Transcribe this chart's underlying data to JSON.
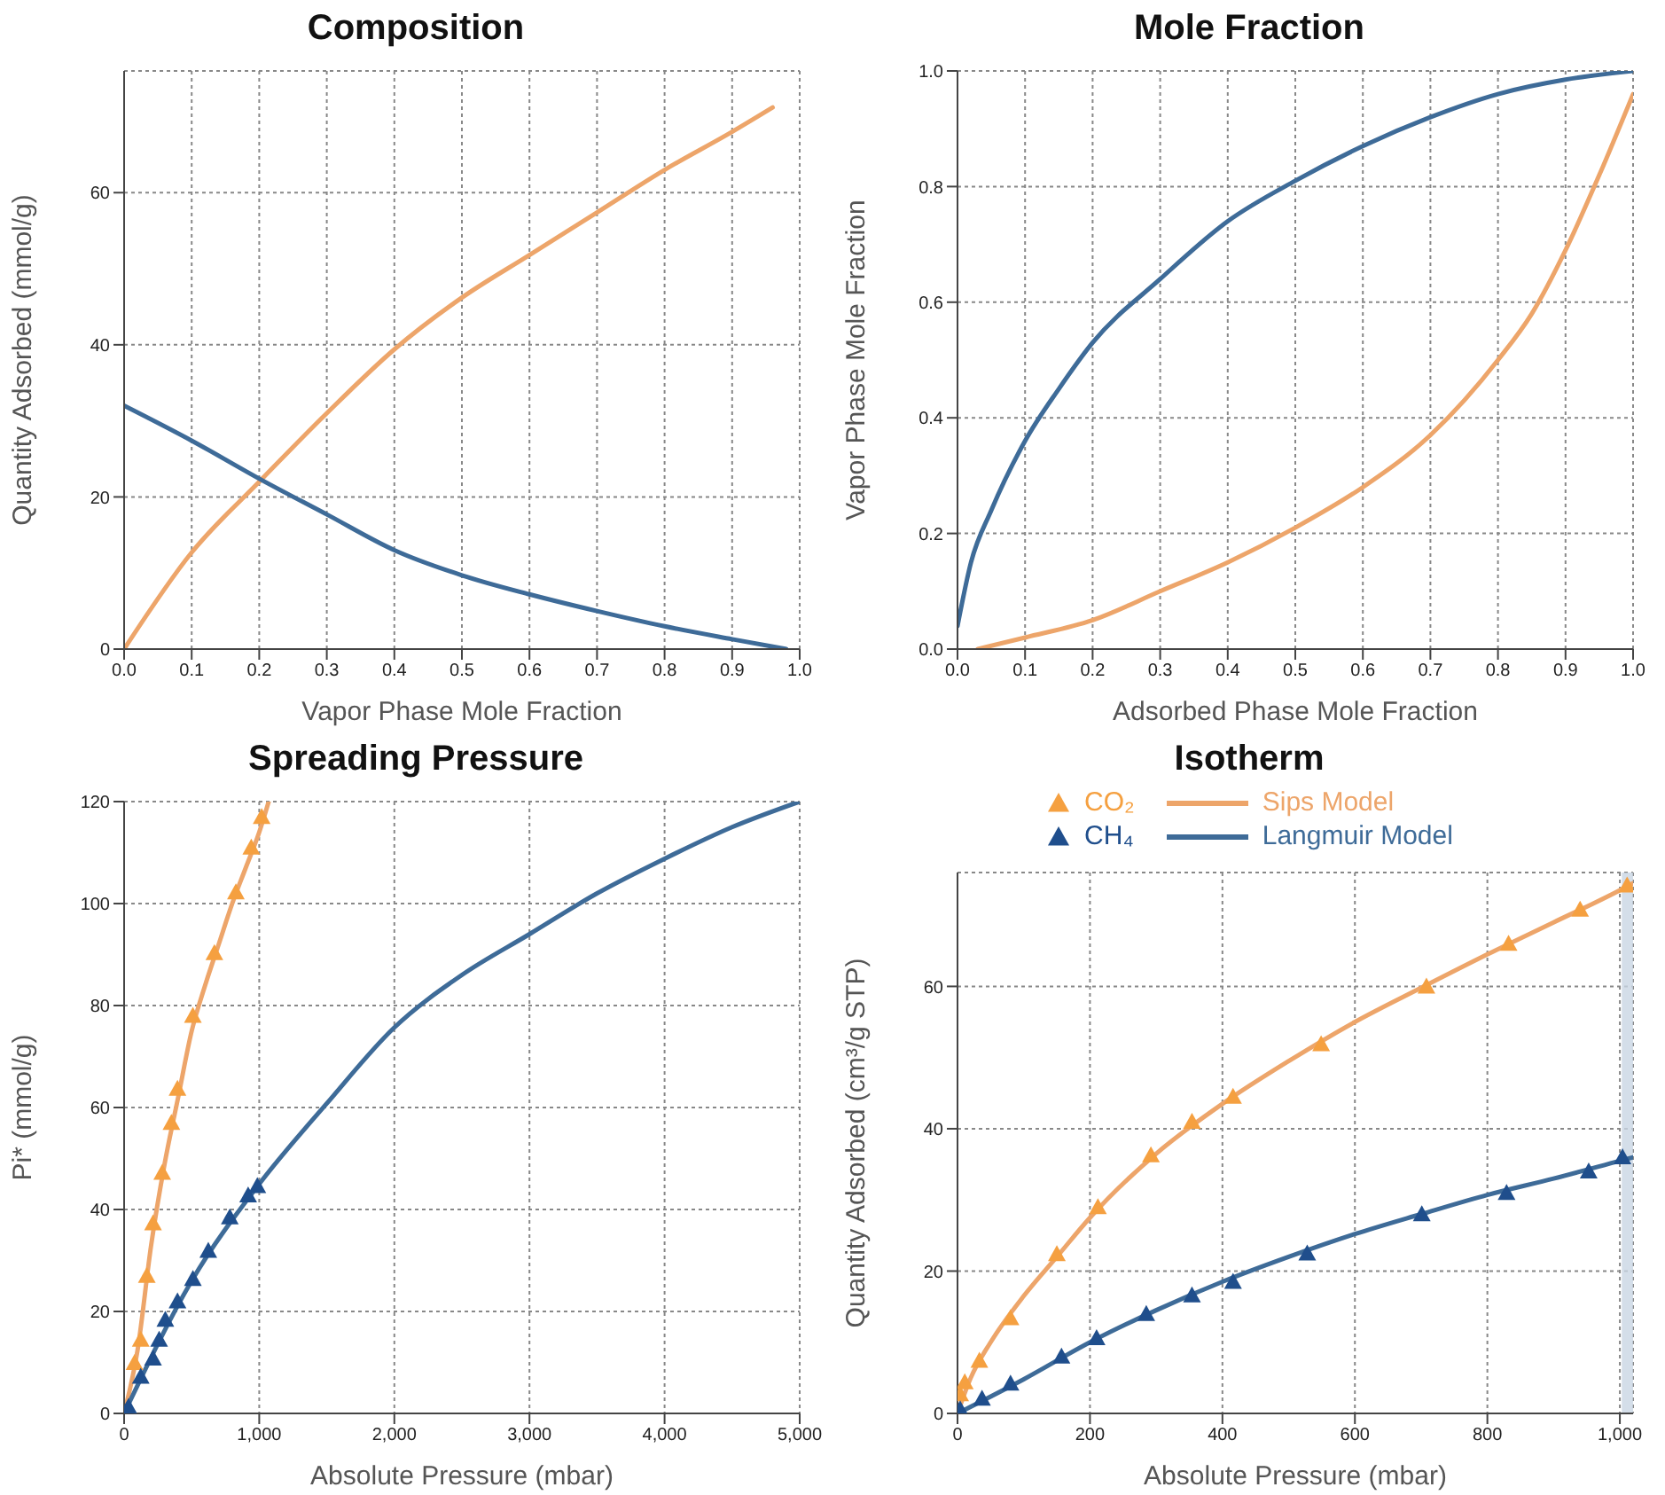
{
  "chart_data": [
    {
      "type": "line",
      "title": "Composition",
      "xlabel": "Vapor Phase Mole Fraction",
      "ylabel": "Quantity Adsorbed (mmol/g)",
      "xlim": [
        0,
        1
      ],
      "ylim": [
        0,
        76
      ],
      "xticks": [
        {
          "value": 0,
          "label": "0.0"
        },
        {
          "value": 0.1,
          "label": "0.1"
        },
        {
          "value": 0.2,
          "label": "0.2"
        },
        {
          "value": 0.3,
          "label": "0.3"
        },
        {
          "value": 0.4,
          "label": "0.4"
        },
        {
          "value": 0.5,
          "label": "0.5"
        },
        {
          "value": 0.6,
          "label": "0.6"
        },
        {
          "value": 0.7,
          "label": "0.7"
        },
        {
          "value": 0.8,
          "label": "0.8"
        },
        {
          "value": 0.9,
          "label": "0.9"
        },
        {
          "value": 1,
          "label": "1.0"
        }
      ],
      "yticks": [
        0,
        20,
        40,
        60
      ],
      "grid": true,
      "line_style": "solid",
      "marker": "none",
      "series": [
        {
          "color": "#eda56a",
          "x": [
            0,
            0.1,
            0.2,
            0.3,
            0.4,
            0.5,
            0.6,
            0.7,
            0.8,
            0.9,
            0.96
          ],
          "values": [
            0,
            12.7,
            22,
            31,
            39.4,
            46.2,
            51.8,
            57.4,
            63,
            68,
            71.2
          ]
        },
        {
          "color": "#3e6b98",
          "x": [
            0,
            0.1,
            0.2,
            0.3,
            0.4,
            0.5,
            0.6,
            0.7,
            0.8,
            0.9,
            0.98
          ],
          "values": [
            32,
            27.4,
            22.4,
            17.7,
            13,
            9.7,
            7.2,
            5,
            3,
            1.3,
            0
          ]
        }
      ]
    },
    {
      "type": "line",
      "title": "Mole Fraction",
      "xlabel": "Adsorbed Phase Mole Fraction",
      "ylabel": "Vapor Phase Mole Fraction",
      "xlim": [
        0,
        1
      ],
      "ylim": [
        0,
        1
      ],
      "xticks": [
        {
          "value": 0,
          "label": "0.0"
        },
        {
          "value": 0.1,
          "label": "0.1"
        },
        {
          "value": 0.2,
          "label": "0.2"
        },
        {
          "value": 0.3,
          "label": "0.3"
        },
        {
          "value": 0.4,
          "label": "0.4"
        },
        {
          "value": 0.5,
          "label": "0.5"
        },
        {
          "value": 0.6,
          "label": "0.6"
        },
        {
          "value": 0.7,
          "label": "0.7"
        },
        {
          "value": 0.8,
          "label": "0.8"
        },
        {
          "value": 0.9,
          "label": "0.9"
        },
        {
          "value": 1,
          "label": "1.0"
        }
      ],
      "yticks": [
        {
          "value": 0,
          "label": "0.0"
        },
        {
          "value": 0.2,
          "label": "0.2"
        },
        {
          "value": 0.4,
          "label": "0.4"
        },
        {
          "value": 0.6,
          "label": "0.6"
        },
        {
          "value": 0.8,
          "label": "0.8"
        },
        {
          "value": 1,
          "label": "1.0"
        }
      ],
      "grid": true,
      "line_style": "solid",
      "marker": "none",
      "series": [
        {
          "color": "#3e6b98",
          "x": [
            0,
            0.02,
            0.05,
            0.1,
            0.15,
            0.2,
            0.3,
            0.4,
            0.5,
            0.6,
            0.7,
            0.8,
            0.9,
            1
          ],
          "values": [
            0.04,
            0.15,
            0.24,
            0.36,
            0.45,
            0.53,
            0.64,
            0.74,
            0.81,
            0.87,
            0.92,
            0.96,
            0.985,
            1
          ]
        },
        {
          "color": "#eda56a",
          "x": [
            0.03,
            0.1,
            0.2,
            0.3,
            0.4,
            0.5,
            0.6,
            0.7,
            0.8,
            0.85,
            0.9,
            0.95,
            1
          ],
          "values": [
            0,
            0.02,
            0.05,
            0.1,
            0.15,
            0.21,
            0.28,
            0.37,
            0.5,
            0.58,
            0.69,
            0.82,
            0.96
          ]
        }
      ]
    },
    {
      "type": "line",
      "title": "Spreading Pressure",
      "xlabel": "Absolute Pressure (mbar)",
      "ylabel": "Pi* (mmol/g)",
      "xlim": [
        0,
        5000
      ],
      "ylim": [
        0,
        120
      ],
      "xticks": [
        0,
        {
          "value": 1000,
          "label": "1,000"
        },
        {
          "value": 2000,
          "label": "2,000"
        },
        {
          "value": 3000,
          "label": "3,000"
        },
        {
          "value": 4000,
          "label": "4,000"
        },
        {
          "value": 5000,
          "label": "5,000"
        }
      ],
      "yticks": [
        0,
        20,
        40,
        60,
        80,
        100,
        120
      ],
      "grid": true,
      "line_style": "solid",
      "marker": "none",
      "series": [
        {
          "color": "#eda56a",
          "x": [
            0,
            100,
            200,
            300,
            400,
            500,
            600,
            700,
            800,
            900,
            1000,
            1070
          ],
          "values": [
            0,
            12.5,
            33,
            49,
            62,
            75,
            84,
            92,
            100,
            107,
            114,
            120
          ]
        },
        {
          "type": "scatter",
          "marker": "triangle",
          "color": "#f5a040",
          "x": [
            77,
            123,
            168,
            214,
            282,
            350,
            395,
            509,
            668,
            827,
            941,
            1018
          ],
          "values": [
            9.9,
            14.5,
            27,
            37.3,
            47.2,
            57,
            63.7,
            78,
            90.3,
            102.2,
            111,
            117
          ]
        },
        {
          "color": "#3e6b98",
          "x": [
            0,
            500,
            1000,
            1500,
            2000,
            2500,
            3000,
            3500,
            4000,
            4500,
            5000
          ],
          "values": [
            0,
            26,
            45,
            60.8,
            75.7,
            86,
            94,
            102,
            108.8,
            115,
            120
          ]
        },
        {
          "type": "scatter",
          "marker": "triangle",
          "color": "#1f4e8c",
          "x": [
            32,
            123,
            214,
            259,
            305,
            395,
            509,
            623,
            782,
            918,
            986
          ],
          "values": [
            1.3,
            7.2,
            10.8,
            14.5,
            18.4,
            22,
            26.4,
            31.9,
            38.5,
            42.8,
            44.6
          ]
        }
      ]
    },
    {
      "type": "line",
      "title": "Isotherm",
      "xlabel": "Absolute Pressure (mbar)",
      "ylabel": "Quantity Adsorbed (cm³/g STP)",
      "xlim": [
        0,
        1020
      ],
      "ylim": [
        0,
        76
      ],
      "xticks": [
        0,
        200,
        400,
        600,
        800,
        {
          "value": 1000,
          "label": "1,000"
        }
      ],
      "yticks": [
        0,
        20,
        40,
        60
      ],
      "grid": true,
      "line_style": "solid",
      "marker": "none",
      "legend": "top",
      "bands": [
        {
          "axis": "x",
          "from": 1003,
          "to": 1020,
          "color": "#c9d6e3"
        }
      ],
      "series": [
        {
          "type": "scatter",
          "marker": "triangle",
          "name": "CO₂",
          "color": "#f5a040",
          "x": [
            4,
            11,
            33,
            80,
            150,
            212,
            292,
            354,
            416,
            549,
            708,
            832,
            940,
            1011
          ],
          "values": [
            2.7,
            4.4,
            7.4,
            13.4,
            22.4,
            29,
            36.3,
            41,
            44.5,
            51.9,
            60,
            66,
            70.8,
            74.2
          ]
        },
        {
          "name": "Sips Model",
          "color": "#eda56a",
          "x": [
            0,
            20,
            50,
            100,
            150,
            200,
            300,
            400,
            500,
            600,
            700,
            800,
            900,
            1000,
            1020
          ],
          "values": [
            0,
            5,
            10,
            16.5,
            22,
            27.5,
            36.5,
            43.5,
            49.5,
            55,
            59.8,
            64.5,
            69,
            73.5,
            74.5
          ]
        },
        {
          "type": "scatter",
          "marker": "triangle",
          "name": "CH₄",
          "color": "#1f4e8c",
          "x": [
            4,
            37,
            80,
            157,
            210,
            285,
            354,
            416,
            528,
            701,
            829,
            953,
            1004
          ],
          "values": [
            0.6,
            2.1,
            4.2,
            8,
            10.6,
            14,
            16.6,
            18.5,
            22.5,
            28,
            31,
            34,
            36
          ]
        },
        {
          "name": "Langmuir Model",
          "color": "#3e6b98",
          "x": [
            0,
            100,
            200,
            300,
            400,
            500,
            600,
            700,
            800,
            900,
            1000,
            1020
          ],
          "values": [
            0,
            4.8,
            10,
            14.5,
            18.5,
            22,
            25.2,
            28,
            30.7,
            33,
            35.5,
            36
          ]
        }
      ]
    }
  ]
}
